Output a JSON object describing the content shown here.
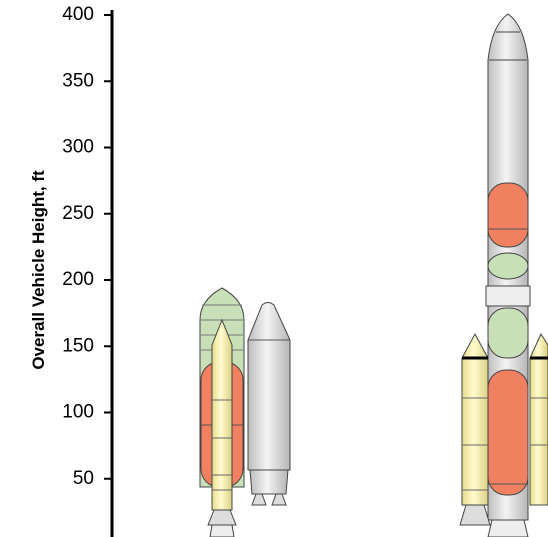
{
  "axis": {
    "title": "Overall Vehicle Height, ft",
    "ylim": [
      0,
      400
    ],
    "yticks": [
      50,
      100,
      150,
      200,
      250,
      300,
      350,
      400
    ]
  }
}
